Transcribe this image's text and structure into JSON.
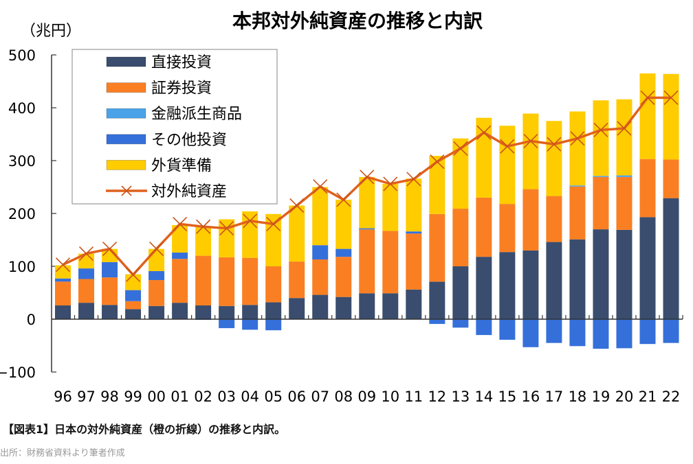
{
  "chart_data": {
    "type": "bar",
    "stacked": true,
    "title": "本邦対外純資産の推移と内訳",
    "ylabel": "（兆円）",
    "xlabel": "",
    "ylim": [
      -100,
      500
    ],
    "yticks": [
      500,
      400,
      300,
      200,
      100,
      0,
      -100
    ],
    "grid": false,
    "legend_position": "top-left",
    "categories": [
      "96",
      "97",
      "98",
      "99",
      "00",
      "01",
      "02",
      "03",
      "04",
      "05",
      "06",
      "07",
      "08",
      "09",
      "10",
      "11",
      "12",
      "13",
      "14",
      "15",
      "16",
      "17",
      "18",
      "19",
      "20",
      "21",
      "22"
    ],
    "series": [
      {
        "name": "直接投資",
        "kind": "bar",
        "color": "#3A4D6E",
        "values": [
          26,
          31,
          27,
          19,
          25,
          31,
          26,
          25,
          27,
          32,
          40,
          46,
          42,
          49,
          49,
          56,
          71,
          100,
          118,
          127,
          130,
          146,
          151,
          170,
          169,
          193,
          229
        ]
      },
      {
        "name": "証券投資",
        "kind": "bar",
        "color": "#FA7F23",
        "values": [
          45,
          45,
          52,
          15,
          49,
          83,
          94,
          92,
          89,
          68,
          69,
          67,
          76,
          121,
          118,
          106,
          128,
          109,
          112,
          91,
          116,
          87,
          100,
          99,
          100,
          110,
          73
        ]
      },
      {
        "name": "金融派生商品",
        "kind": "bar",
        "color": "#4AA3E8",
        "values": [
          0,
          0,
          0,
          0,
          0,
          0,
          0,
          0,
          0,
          0,
          0,
          0,
          0,
          1,
          0,
          0,
          0,
          0,
          0,
          0,
          0,
          0,
          2,
          2,
          3,
          0,
          0
        ]
      },
      {
        "name": "その他投資",
        "kind": "bar",
        "color": "#3570DA",
        "values": [
          6,
          20,
          29,
          21,
          17,
          12,
          -1,
          -17,
          -20,
          -21,
          0,
          27,
          15,
          1,
          0,
          4,
          -9,
          -16,
          -30,
          -39,
          -53,
          -45,
          -51,
          -56,
          -55,
          -47,
          -45
        ]
      },
      {
        "name": "外貨準備",
        "kind": "bar",
        "color": "#FFCC00",
        "values": [
          25,
          28,
          25,
          30,
          42,
          52,
          54,
          72,
          88,
          99,
          106,
          110,
          93,
          97,
          89,
          100,
          110,
          133,
          151,
          148,
          143,
          142,
          140,
          143,
          144,
          162,
          162
        ]
      },
      {
        "name": "対外純資産",
        "kind": "line",
        "color": "#E0611C",
        "marker": "x",
        "values": [
          103,
          124,
          133,
          84,
          133,
          180,
          175,
          172,
          186,
          180,
          215,
          251,
          226,
          269,
          256,
          265,
          298,
          323,
          353,
          327,
          337,
          331,
          342,
          358,
          361,
          419,
          419
        ]
      }
    ]
  },
  "caption": "【図表1】日本の対外純資産（橙の折線）の推移と内訳。",
  "source": "出所：財務省資料より筆者作成"
}
